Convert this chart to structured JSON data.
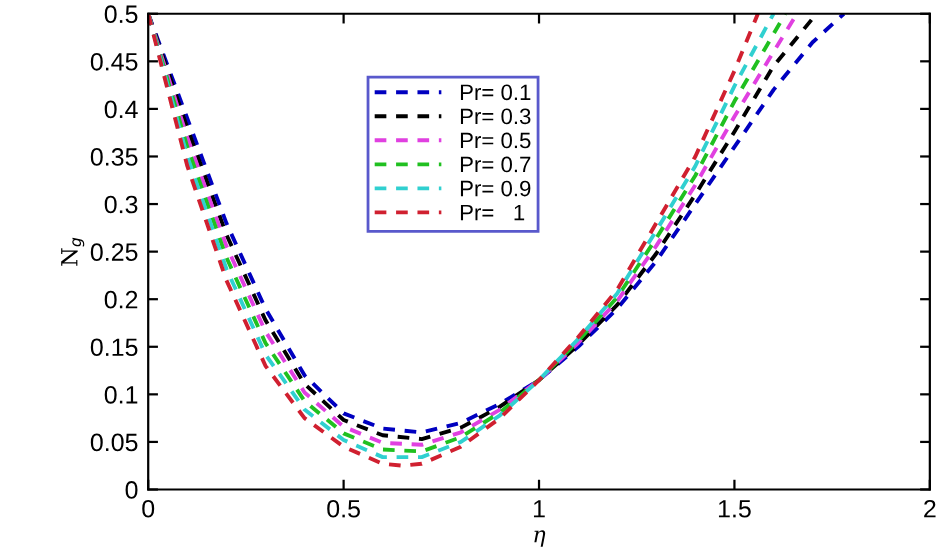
{
  "chart_data": {
    "type": "line",
    "xlabel": "η",
    "ylabel": "N$_{g}$",
    "xlim": [
      0,
      2
    ],
    "ylim": [
      0,
      0.5
    ],
    "xticks": [
      0,
      0.5,
      1,
      1.5,
      2
    ],
    "yticks": [
      0,
      0.05,
      0.1,
      0.15,
      0.2,
      0.25,
      0.3,
      0.35,
      0.4,
      0.45,
      0.5
    ],
    "legend": "top",
    "grid": false,
    "line_style": "dashed",
    "marker": "none",
    "series": [
      {
        "name": "Pr= 0.1",
        "color": "#0000c0",
        "x": [
          0,
          0.1,
          0.2,
          0.3,
          0.4,
          0.5,
          0.6,
          0.7,
          0.8,
          0.9,
          1,
          1.1,
          1.2,
          1.3,
          1.4,
          1.5,
          1.6,
          1.7,
          1.78
        ],
        "values": [
          0.5,
          0.39,
          0.28,
          0.19,
          0.12,
          0.08,
          0.064,
          0.06,
          0.07,
          0.09,
          0.115,
          0.15,
          0.19,
          0.24,
          0.3,
          0.36,
          0.42,
          0.47,
          0.5
        ]
      },
      {
        "name": "Pr= 0.3",
        "color": "#000000",
        "x": [
          0,
          0.1,
          0.2,
          0.3,
          0.4,
          0.5,
          0.6,
          0.7,
          0.8,
          0.9,
          1,
          1.1,
          1.2,
          1.3,
          1.4,
          1.5,
          1.6,
          1.71
        ],
        "values": [
          0.5,
          0.38,
          0.268,
          0.178,
          0.111,
          0.073,
          0.057,
          0.053,
          0.065,
          0.087,
          0.115,
          0.152,
          0.194,
          0.248,
          0.31,
          0.376,
          0.445,
          0.5
        ]
      },
      {
        "name": "Pr= 0.5",
        "color": "#e040e0",
        "x": [
          0,
          0.1,
          0.2,
          0.3,
          0.4,
          0.5,
          0.6,
          0.7,
          0.8,
          0.9,
          1,
          1.1,
          1.2,
          1.3,
          1.4,
          1.5,
          1.6,
          1.66
        ],
        "values": [
          0.5,
          0.37,
          0.256,
          0.166,
          0.102,
          0.066,
          0.049,
          0.047,
          0.06,
          0.084,
          0.115,
          0.154,
          0.198,
          0.256,
          0.32,
          0.392,
          0.46,
          0.5
        ]
      },
      {
        "name": "Pr= 0.7",
        "color": "#20c020",
        "x": [
          0,
          0.1,
          0.2,
          0.3,
          0.4,
          0.5,
          0.6,
          0.7,
          0.8,
          0.9,
          1,
          1.1,
          1.2,
          1.3,
          1.4,
          1.5,
          1.63
        ],
        "values": [
          0.5,
          0.36,
          0.244,
          0.154,
          0.093,
          0.059,
          0.042,
          0.04,
          0.055,
          0.081,
          0.115,
          0.156,
          0.202,
          0.264,
          0.33,
          0.408,
          0.5
        ]
      },
      {
        "name": "Pr= 0.9",
        "color": "#30d0d0",
        "x": [
          0,
          0.1,
          0.2,
          0.3,
          0.4,
          0.5,
          0.6,
          0.7,
          0.8,
          0.9,
          1,
          1.1,
          1.2,
          1.3,
          1.4,
          1.5,
          1.6
        ],
        "values": [
          0.5,
          0.35,
          0.232,
          0.142,
          0.084,
          0.052,
          0.034,
          0.034,
          0.05,
          0.078,
          0.115,
          0.158,
          0.206,
          0.272,
          0.34,
          0.424,
          0.5
        ]
      },
      {
        "name": "Pr=   1",
        "color": "#d02030",
        "x": [
          0,
          0.1,
          0.2,
          0.3,
          0.4,
          0.5,
          0.6,
          0.65,
          0.7,
          0.8,
          0.9,
          1,
          1.1,
          1.2,
          1.3,
          1.4,
          1.5,
          1.56
        ],
        "values": [
          0.5,
          0.34,
          0.22,
          0.13,
          0.075,
          0.045,
          0.027,
          0.025,
          0.027,
          0.045,
          0.075,
          0.115,
          0.16,
          0.21,
          0.28,
          0.35,
          0.44,
          0.5
        ]
      }
    ]
  }
}
